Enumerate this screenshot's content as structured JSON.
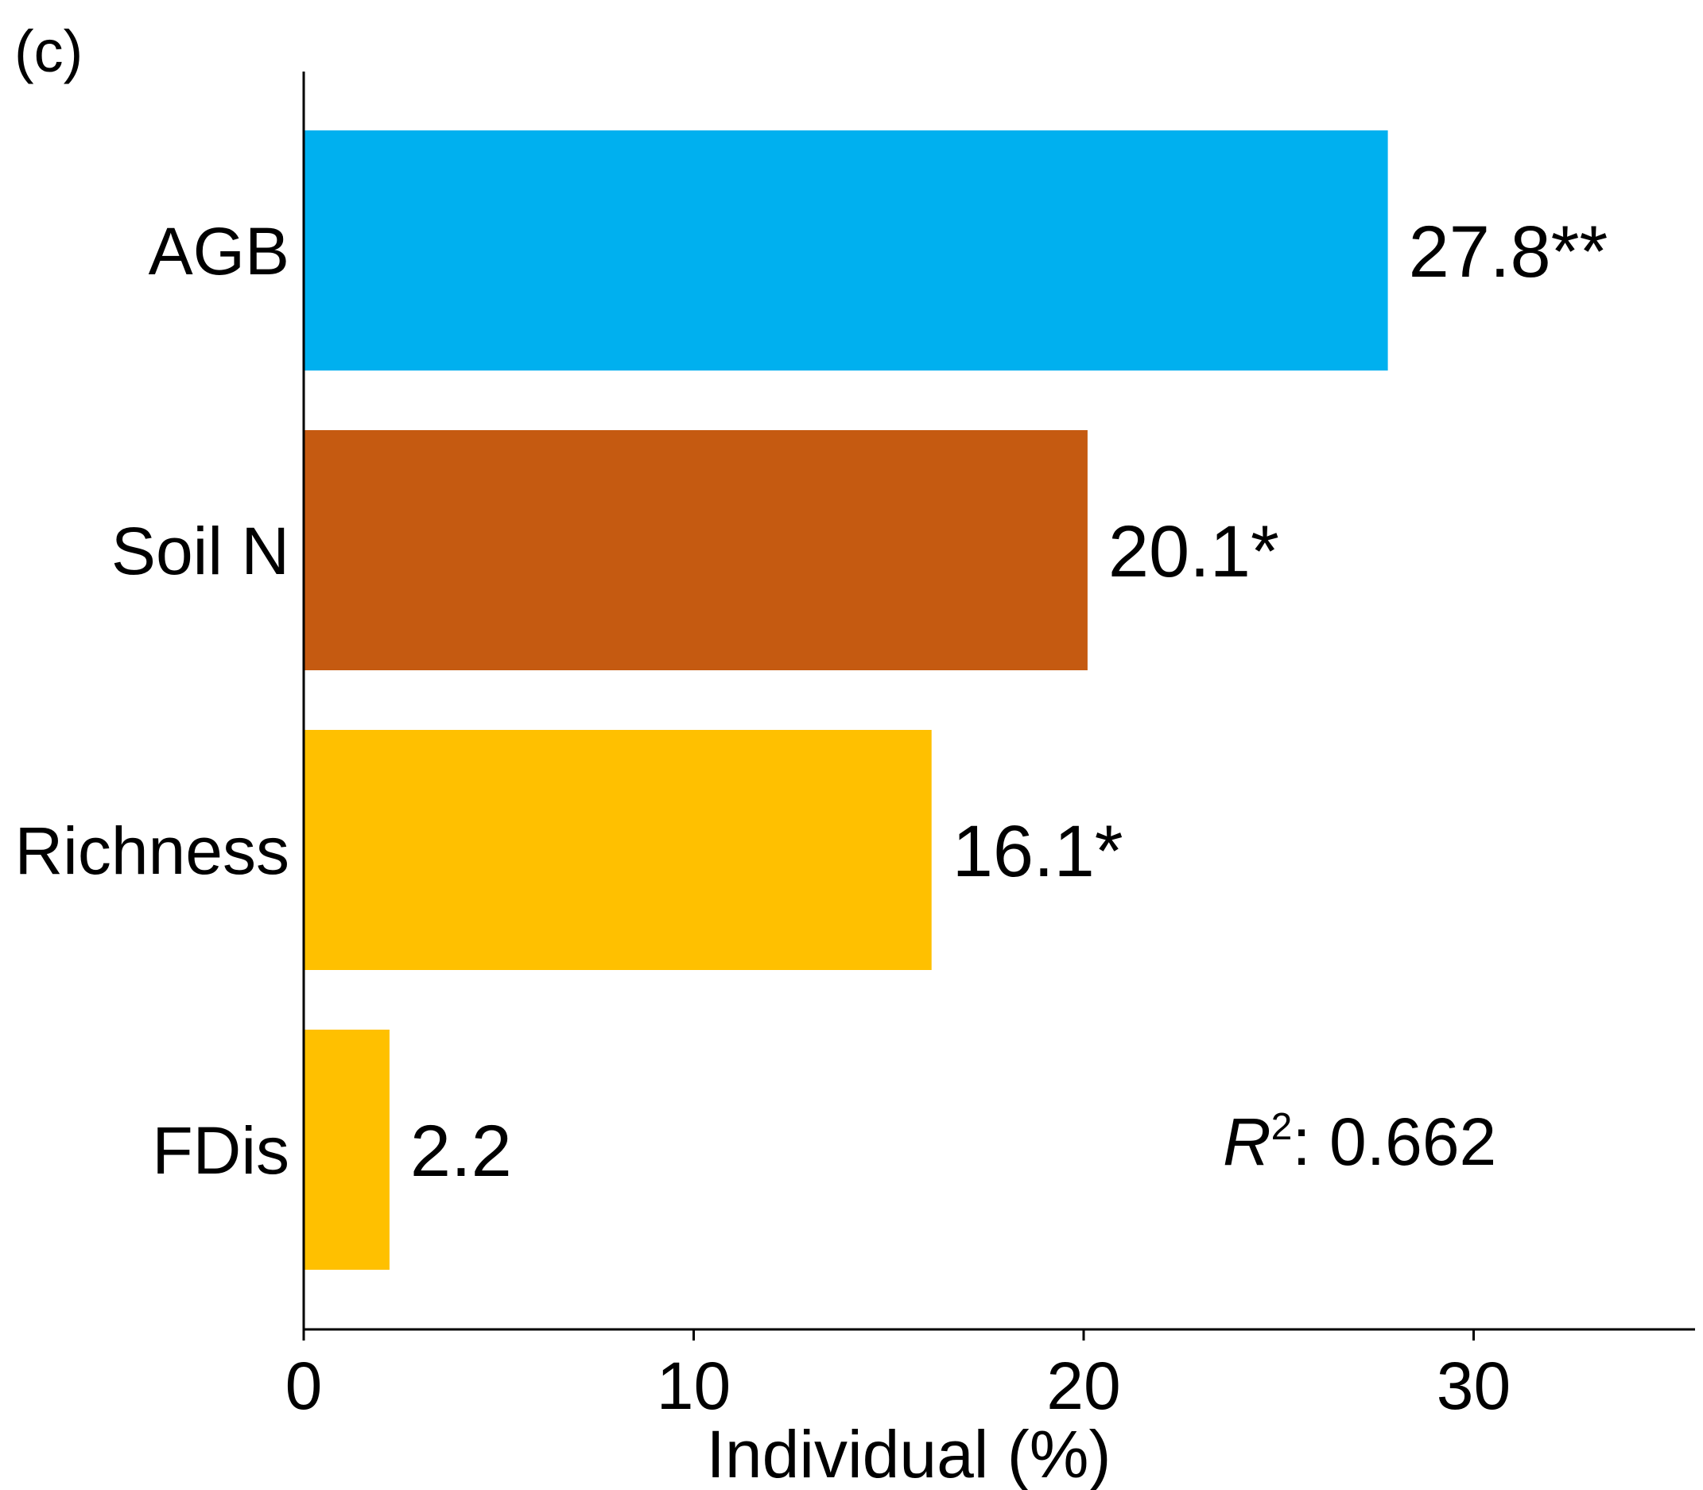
{
  "chart_data": {
    "type": "bar",
    "orientation": "horizontal",
    "panel_label": "(c)",
    "categories": [
      "AGB",
      "Soil N",
      "Richness",
      "FDis"
    ],
    "values": [
      27.8,
      20.1,
      16.1,
      2.2
    ],
    "data_labels": [
      "27.8**",
      "20.1*",
      "16.1*",
      "2.2"
    ],
    "colors": [
      "#00B0EF",
      "#C55A11",
      "#FFC000",
      "#FFC000"
    ],
    "xlabel": "Individual (%)",
    "ylabel": "",
    "xlim": [
      0,
      36
    ],
    "xticks": [
      0,
      10,
      20,
      30
    ],
    "tick_labels": [
      "0",
      "10",
      "20",
      "30"
    ],
    "grid": false,
    "annotation": {
      "symbol": "R",
      "superscript": "2",
      "text": ": 0.662"
    }
  }
}
